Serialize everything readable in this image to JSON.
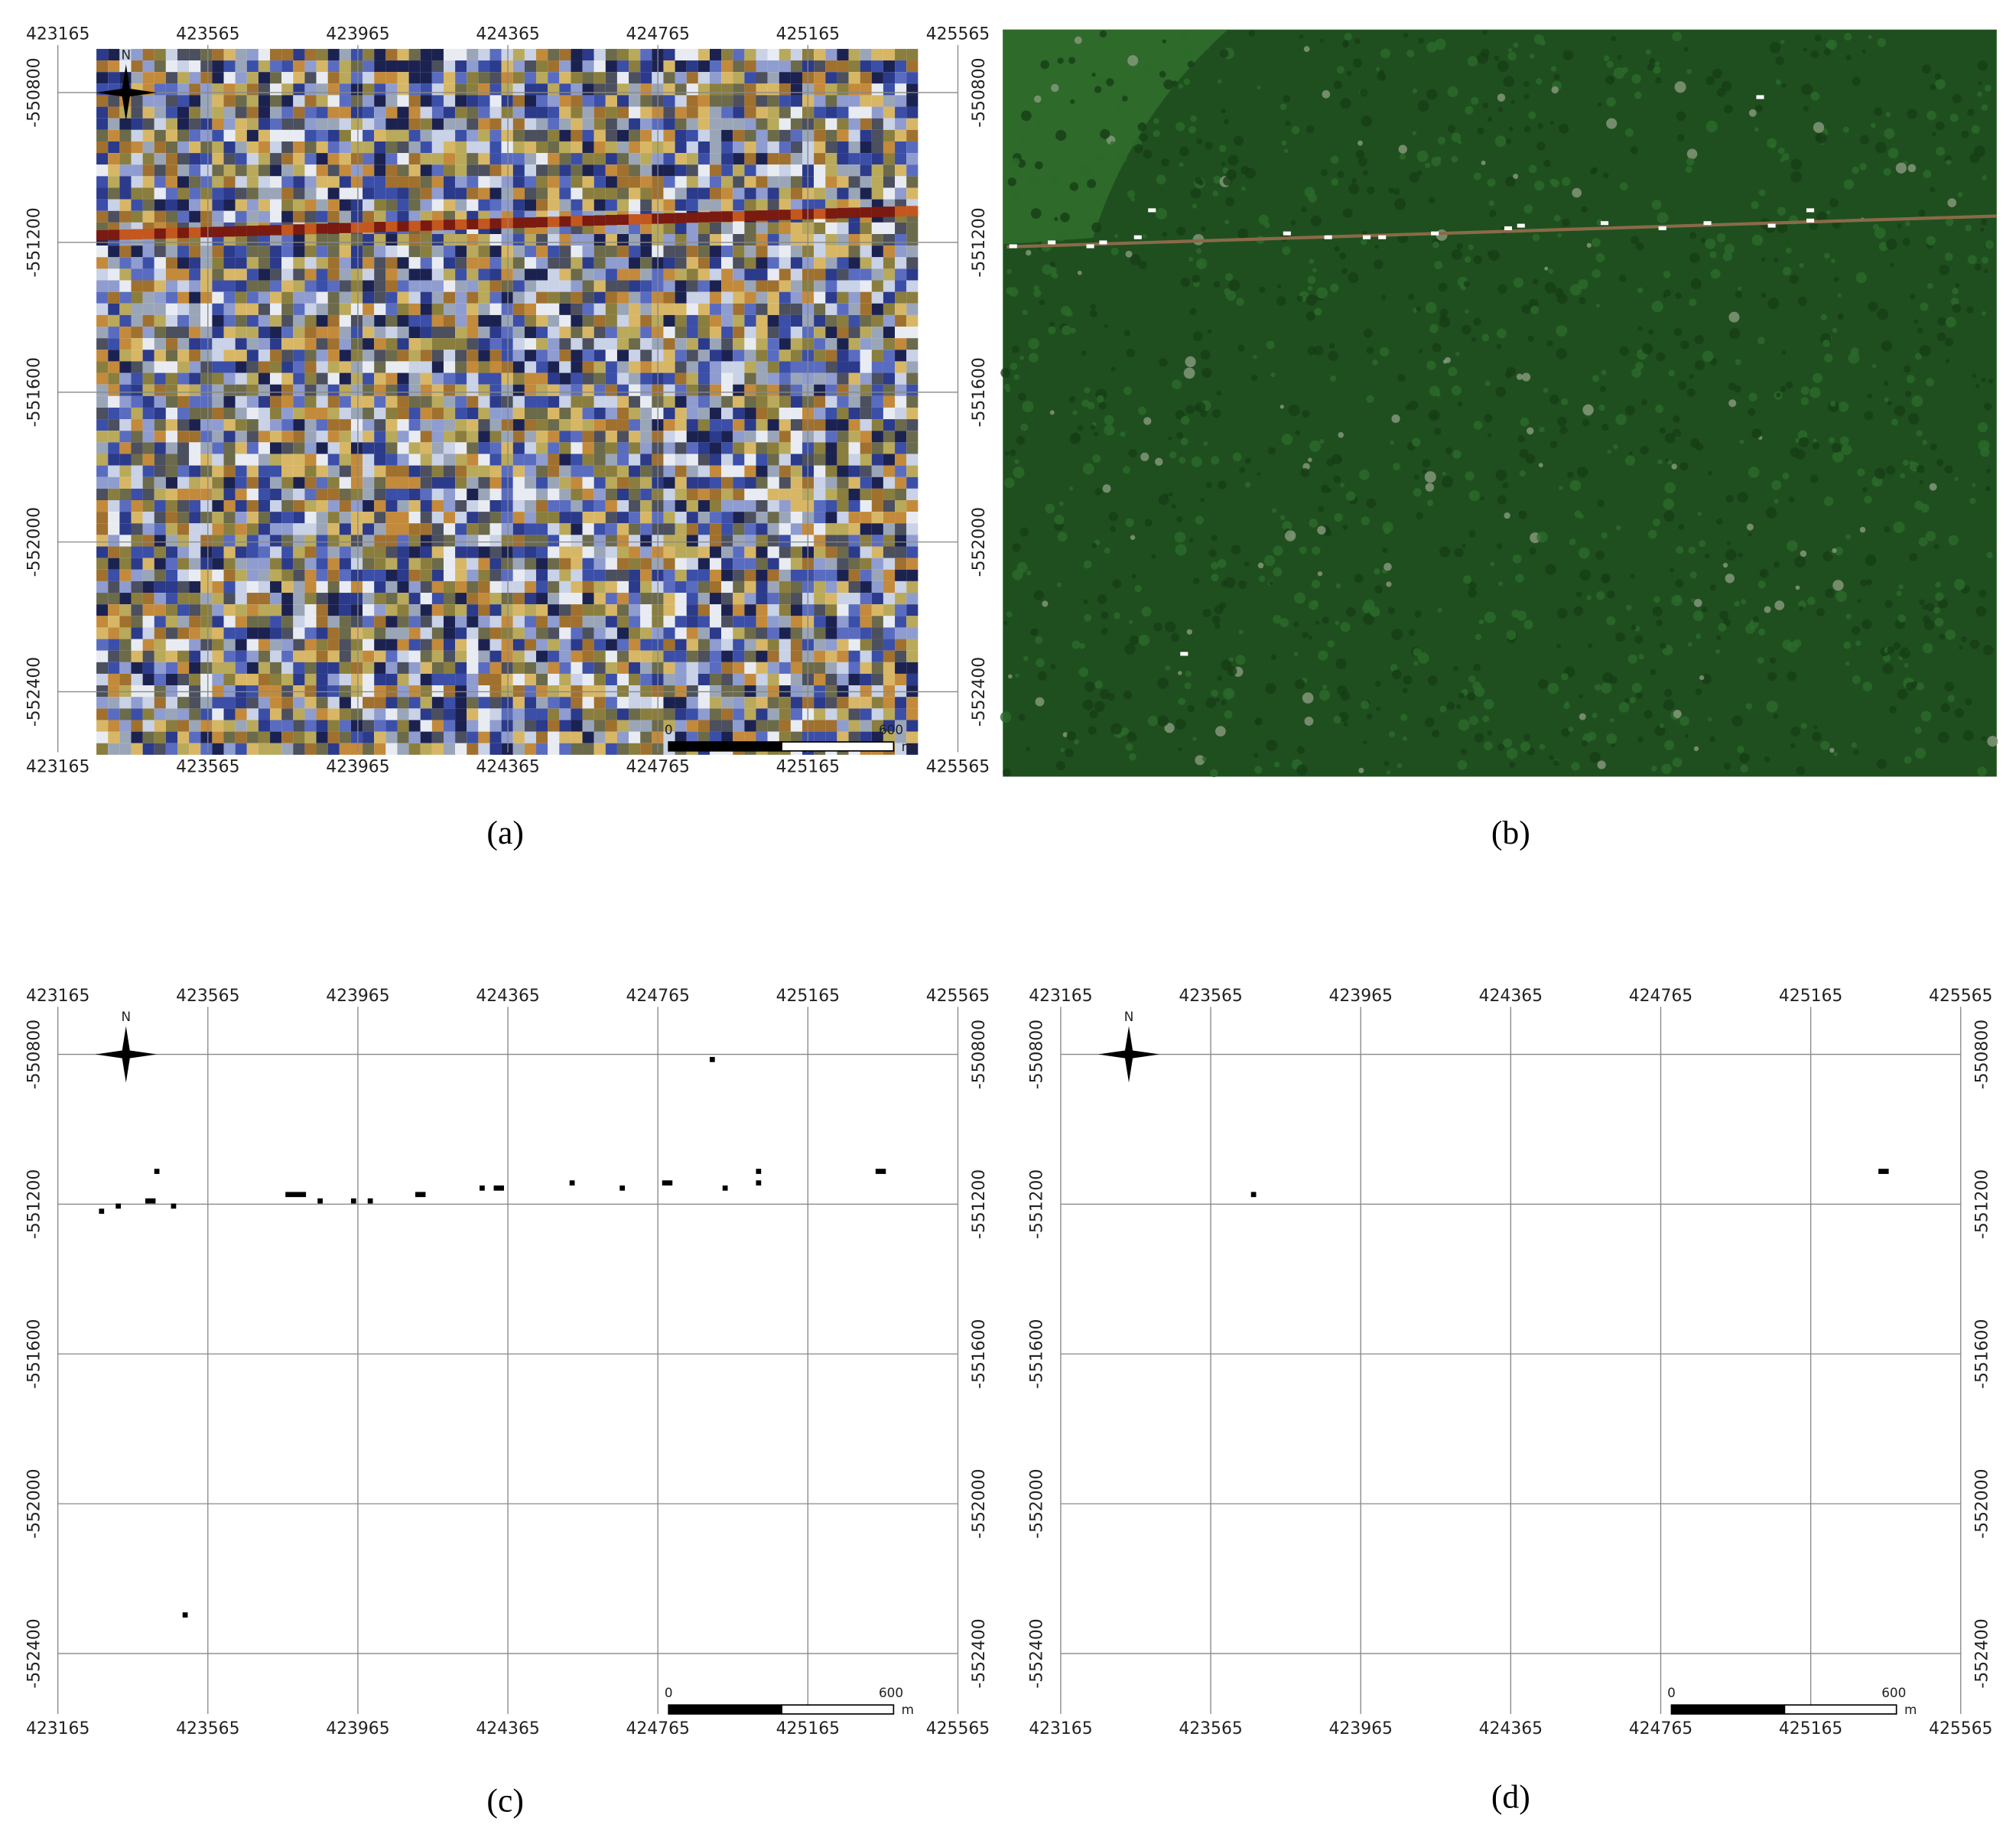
{
  "panels": [
    {
      "caption": "(a)",
      "x_ticks": [
        423165,
        423565,
        423965,
        424365,
        424765,
        425165,
        425565
      ],
      "y_ticks": [
        -550800,
        -551200,
        -551600,
        -552000,
        -552400
      ],
      "north": "N",
      "scale": {
        "start": "0",
        "end": "600",
        "unit": "m"
      }
    },
    {
      "caption": "(b)"
    },
    {
      "caption": "(c)",
      "x_ticks": [
        423165,
        423565,
        423965,
        424365,
        424765,
        425165,
        425565
      ],
      "y_ticks": [
        -550800,
        -551200,
        -551600,
        -552000,
        -552400
      ],
      "north": "N",
      "scale": {
        "start": "0",
        "end": "600",
        "unit": "m"
      }
    },
    {
      "caption": "(d)",
      "x_ticks": [
        423165,
        423565,
        423965,
        424365,
        424765,
        425165,
        425565
      ],
      "y_ticks": [
        -550800,
        -551200,
        -551600,
        -552000,
        -552400
      ],
      "north": "N",
      "scale": {
        "start": "0",
        "end": "600",
        "unit": "m"
      }
    }
  ]
}
